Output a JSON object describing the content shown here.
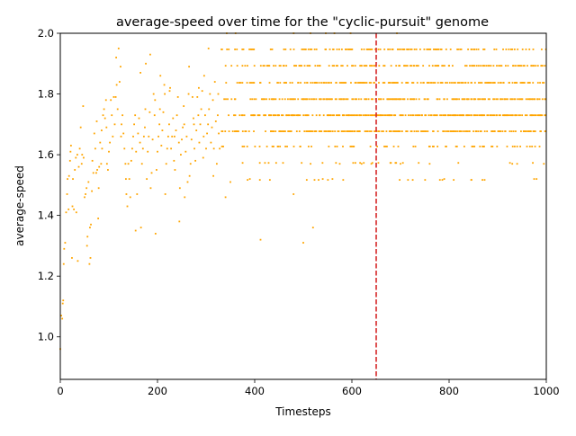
{
  "chart_data": {
    "type": "scatter",
    "title": "average-speed over time for the \"cyclic-pursuit\" genome",
    "xlabel": "Timesteps",
    "ylabel": "average-speed",
    "xlim": [
      0,
      1000
    ],
    "ylim": [
      0.86,
      2.0
    ],
    "xticks": [
      0,
      200,
      400,
      600,
      800,
      1000
    ],
    "yticks": [
      1.0,
      1.2,
      1.4,
      1.6,
      1.8,
      2.0
    ],
    "xtick_labels": [
      "0",
      "200",
      "400",
      "600",
      "800",
      "1000"
    ],
    "ytick_labels": [
      "1.0",
      "1.2",
      "1.4",
      "1.6",
      "1.8",
      "2.0"
    ],
    "grid": false,
    "marker_color": "#ffa500",
    "vline": {
      "x": 650,
      "color": "#d62728",
      "style": "dashed"
    },
    "series": [
      {
        "levels": [
          1.517,
          1.573,
          1.627,
          1.677,
          1.73,
          1.783,
          1.837,
          1.893,
          1.947,
          2.0
        ],
        "early_points": [
          [
            0,
            0.96
          ],
          [
            2,
            1.07
          ],
          [
            4,
            1.06
          ],
          [
            5,
            1.11
          ],
          [
            6,
            1.12
          ],
          [
            7,
            1.24
          ],
          [
            8,
            1.29
          ],
          [
            10,
            1.31
          ],
          [
            12,
            1.41
          ],
          [
            14,
            1.47
          ],
          [
            15,
            1.52
          ],
          [
            17,
            1.42
          ],
          [
            18,
            1.53
          ],
          [
            20,
            1.58
          ],
          [
            21,
            1.61
          ],
          [
            22,
            1.63
          ],
          [
            24,
            1.26
          ],
          [
            25,
            1.43
          ],
          [
            26,
            1.52
          ],
          [
            28,
            1.42
          ],
          [
            30,
            1.55
          ],
          [
            32,
            1.59
          ],
          [
            33,
            1.41
          ],
          [
            35,
            1.6
          ],
          [
            36,
            1.25
          ],
          [
            38,
            1.56
          ],
          [
            40,
            1.62
          ],
          [
            42,
            1.69
          ],
          [
            44,
            1.57
          ],
          [
            45,
            1.6
          ],
          [
            47,
            1.76
          ],
          [
            48,
            1.59
          ],
          [
            50,
            1.46
          ],
          [
            52,
            1.47
          ],
          [
            54,
            1.49
          ],
          [
            55,
            1.3
          ],
          [
            56,
            1.33
          ],
          [
            58,
            1.51
          ],
          [
            60,
            1.24
          ],
          [
            61,
            1.36
          ],
          [
            62,
            1.26
          ],
          [
            63,
            1.37
          ],
          [
            65,
            1.48
          ],
          [
            66,
            1.58
          ],
          [
            68,
            1.54
          ],
          [
            70,
            1.67
          ],
          [
            72,
            1.62
          ],
          [
            74,
            1.54
          ],
          [
            75,
            1.71
          ],
          [
            76,
            1.55
          ],
          [
            78,
            1.39
          ],
          [
            79,
            1.49
          ],
          [
            80,
            1.56
          ],
          [
            82,
            1.64
          ],
          [
            84,
            1.57
          ],
          [
            85,
            1.68
          ],
          [
            86,
            1.62
          ],
          [
            88,
            1.73
          ],
          [
            90,
            1.75
          ],
          [
            92,
            1.72
          ],
          [
            94,
            1.78
          ],
          [
            95,
            1.69
          ],
          [
            96,
            1.57
          ],
          [
            98,
            1.55
          ],
          [
            100,
            1.61
          ],
          [
            102,
            1.64
          ],
          [
            104,
            1.78
          ],
          [
            106,
            1.73
          ],
          [
            108,
            1.66
          ],
          [
            110,
            1.79
          ],
          [
            112,
            1.7
          ],
          [
            114,
            1.79
          ],
          [
            115,
            1.92
          ],
          [
            116,
            1.83
          ],
          [
            118,
            1.75
          ],
          [
            120,
            1.95
          ],
          [
            122,
            1.84
          ],
          [
            124,
            1.89
          ],
          [
            125,
            1.66
          ],
          [
            126,
            1.7
          ],
          [
            128,
            1.73
          ],
          [
            130,
            1.67
          ],
          [
            132,
            1.62
          ],
          [
            134,
            1.57
          ],
          [
            135,
            1.52
          ],
          [
            136,
            1.47
          ],
          [
            138,
            1.43
          ],
          [
            140,
            1.57
          ],
          [
            142,
            1.52
          ],
          [
            144,
            1.46
          ],
          [
            146,
            1.58
          ],
          [
            148,
            1.62
          ],
          [
            150,
            1.66
          ],
          [
            152,
            1.7
          ],
          [
            154,
            1.73
          ],
          [
            155,
            1.35
          ],
          [
            156,
            1.61
          ],
          [
            158,
            1.47
          ],
          [
            160,
            1.67
          ],
          [
            162,
            1.72
          ],
          [
            164,
            1.64
          ],
          [
            165,
            1.87
          ],
          [
            166,
            1.36
          ],
          [
            168,
            1.57
          ],
          [
            170,
            1.62
          ],
          [
            172,
            1.66
          ],
          [
            174,
            1.69
          ],
          [
            175,
            1.75
          ],
          [
            176,
            1.9
          ],
          [
            178,
            1.52
          ],
          [
            180,
            1.61
          ],
          [
            182,
            1.66
          ],
          [
            184,
            1.74
          ],
          [
            185,
            1.93
          ],
          [
            186,
            1.49
          ],
          [
            188,
            1.54
          ],
          [
            190,
            1.65
          ],
          [
            192,
            1.8
          ],
          [
            194,
            1.73
          ],
          [
            195,
            1.78
          ],
          [
            196,
            1.34
          ],
          [
            198,
            1.55
          ],
          [
            200,
            1.61
          ],
          [
            202,
            1.66
          ],
          [
            204,
            1.7
          ],
          [
            205,
            1.75
          ],
          [
            206,
            1.86
          ],
          [
            208,
            1.63
          ],
          [
            210,
            1.68
          ],
          [
            212,
            1.74
          ],
          [
            214,
            1.83
          ],
          [
            215,
            1.8
          ],
          [
            216,
            1.47
          ],
          [
            218,
            1.57
          ],
          [
            220,
            1.62
          ],
          [
            222,
            1.66
          ],
          [
            224,
            1.7
          ],
          [
            225,
            1.81
          ],
          [
            226,
            1.82
          ],
          [
            228,
            1.62
          ],
          [
            230,
            1.66
          ],
          [
            232,
            1.72
          ],
          [
            234,
            1.58
          ],
          [
            235,
            1.66
          ],
          [
            236,
            1.55
          ],
          [
            238,
            1.68
          ],
          [
            240,
            1.73
          ],
          [
            242,
            1.79
          ],
          [
            244,
            1.64
          ],
          [
            245,
            1.38
          ],
          [
            246,
            1.49
          ],
          [
            248,
            1.6
          ],
          [
            250,
            1.65
          ],
          [
            252,
            1.69
          ],
          [
            254,
            1.76
          ],
          [
            255,
            1.7
          ],
          [
            256,
            1.46
          ],
          [
            258,
            1.61
          ],
          [
            260,
            1.66
          ],
          [
            262,
            1.51
          ],
          [
            264,
            1.8
          ],
          [
            265,
            1.89
          ],
          [
            266,
            1.53
          ],
          [
            268,
            1.57
          ],
          [
            270,
            1.65
          ],
          [
            272,
            1.79
          ],
          [
            274,
            1.72
          ],
          [
            275,
            1.7
          ],
          [
            276,
            1.62
          ],
          [
            278,
            1.58
          ],
          [
            280,
            1.68
          ],
          [
            282,
            1.79
          ],
          [
            284,
            1.73
          ],
          [
            285,
            1.82
          ],
          [
            286,
            1.64
          ],
          [
            288,
            1.7
          ],
          [
            290,
            1.75
          ],
          [
            292,
            1.81
          ],
          [
            294,
            1.59
          ],
          [
            295,
            1.66
          ],
          [
            296,
            1.86
          ],
          [
            298,
            1.73
          ],
          [
            300,
            1.62
          ],
          [
            302,
            1.67
          ],
          [
            304,
            1.7
          ],
          [
            305,
            1.95
          ],
          [
            306,
            1.75
          ],
          [
            308,
            1.8
          ],
          [
            310,
            1.64
          ],
          [
            312,
            1.69
          ],
          [
            314,
            1.78
          ],
          [
            315,
            1.53
          ],
          [
            316,
            1.62
          ],
          [
            318,
            1.84
          ],
          [
            320,
            1.71
          ],
          [
            322,
            1.57
          ],
          [
            324,
            1.73
          ],
          [
            325,
            1.8
          ],
          [
            326,
            1.67
          ],
          [
            328,
            1.62
          ]
        ],
        "scatter_outliers": [
          [
            340,
            1.46
          ],
          [
            350,
            1.51
          ],
          [
            390,
            1.52
          ],
          [
            412,
            1.32
          ],
          [
            480,
            1.47
          ],
          [
            500,
            1.31
          ],
          [
            520,
            1.36
          ],
          [
            540,
            1.52
          ],
          [
            560,
            1.52
          ],
          [
            790,
            1.52
          ],
          [
            975,
            1.52
          ],
          [
            980,
            1.52
          ],
          [
            930,
            1.57
          ],
          [
            940,
            1.57
          ],
          [
            995,
            1.57
          ],
          [
            515,
            1.57
          ],
          [
            700,
            1.57
          ],
          [
            760,
            1.57
          ],
          [
            640,
            1.57
          ],
          [
            620,
            1.57
          ],
          [
            575,
            1.57
          ]
        ]
      }
    ]
  }
}
